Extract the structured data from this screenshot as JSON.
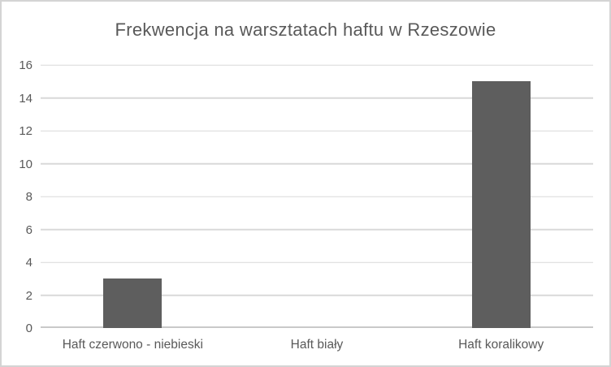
{
  "chart_data": {
    "type": "bar",
    "title": "Frekwencja na warsztatach haftu w Rzeszowie",
    "categories": [
      "Haft czerwono - niebieski",
      "Haft biały",
      "Haft koralikowy"
    ],
    "values": [
      3,
      0,
      15
    ],
    "xlabel": "",
    "ylabel": "",
    "ylim": [
      0,
      16
    ],
    "yticks": [
      0,
      2,
      4,
      6,
      8,
      10,
      12,
      14,
      16
    ],
    "grid": "horizontal",
    "legend": "none",
    "colors": {
      "bar": "#5e5e5e",
      "gridline": "#d9d9d9",
      "axis_line": "#c9c9c9",
      "text": "#595959",
      "frame_border": "#d4d4d4",
      "background": "#ffffff"
    }
  }
}
